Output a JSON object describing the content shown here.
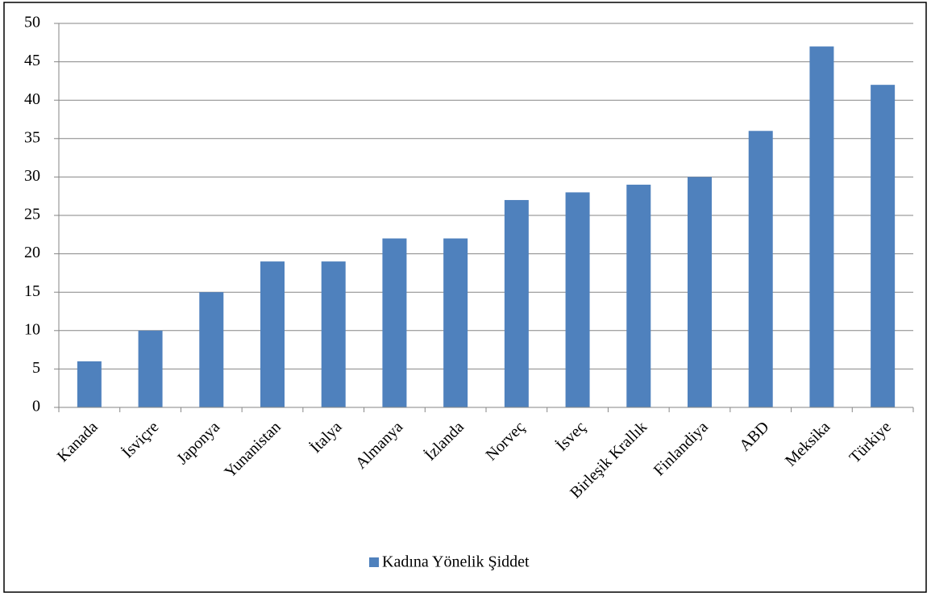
{
  "chart_data": {
    "type": "bar",
    "categories": [
      "Kanada",
      "İsviçre",
      "Japonya",
      "Yunanistan",
      "İtalya",
      "Almanya",
      "İzlanda",
      "Norveç",
      "İsveç",
      "Birleşik Krallık",
      "Finlandiya",
      "ABD",
      "Meksika",
      "Türkiye"
    ],
    "series": [
      {
        "name": "Kadına Yönelik Şiddet",
        "color": "#4f81bd",
        "values": [
          6,
          10,
          15,
          19,
          19,
          22,
          22,
          27,
          28,
          29,
          30,
          36,
          47,
          42
        ]
      }
    ],
    "ylim": [
      0,
      50
    ],
    "yticks": [
      0,
      5,
      10,
      15,
      20,
      25,
      30,
      35,
      40,
      45,
      50
    ],
    "grid": true,
    "legend": "bottom"
  }
}
